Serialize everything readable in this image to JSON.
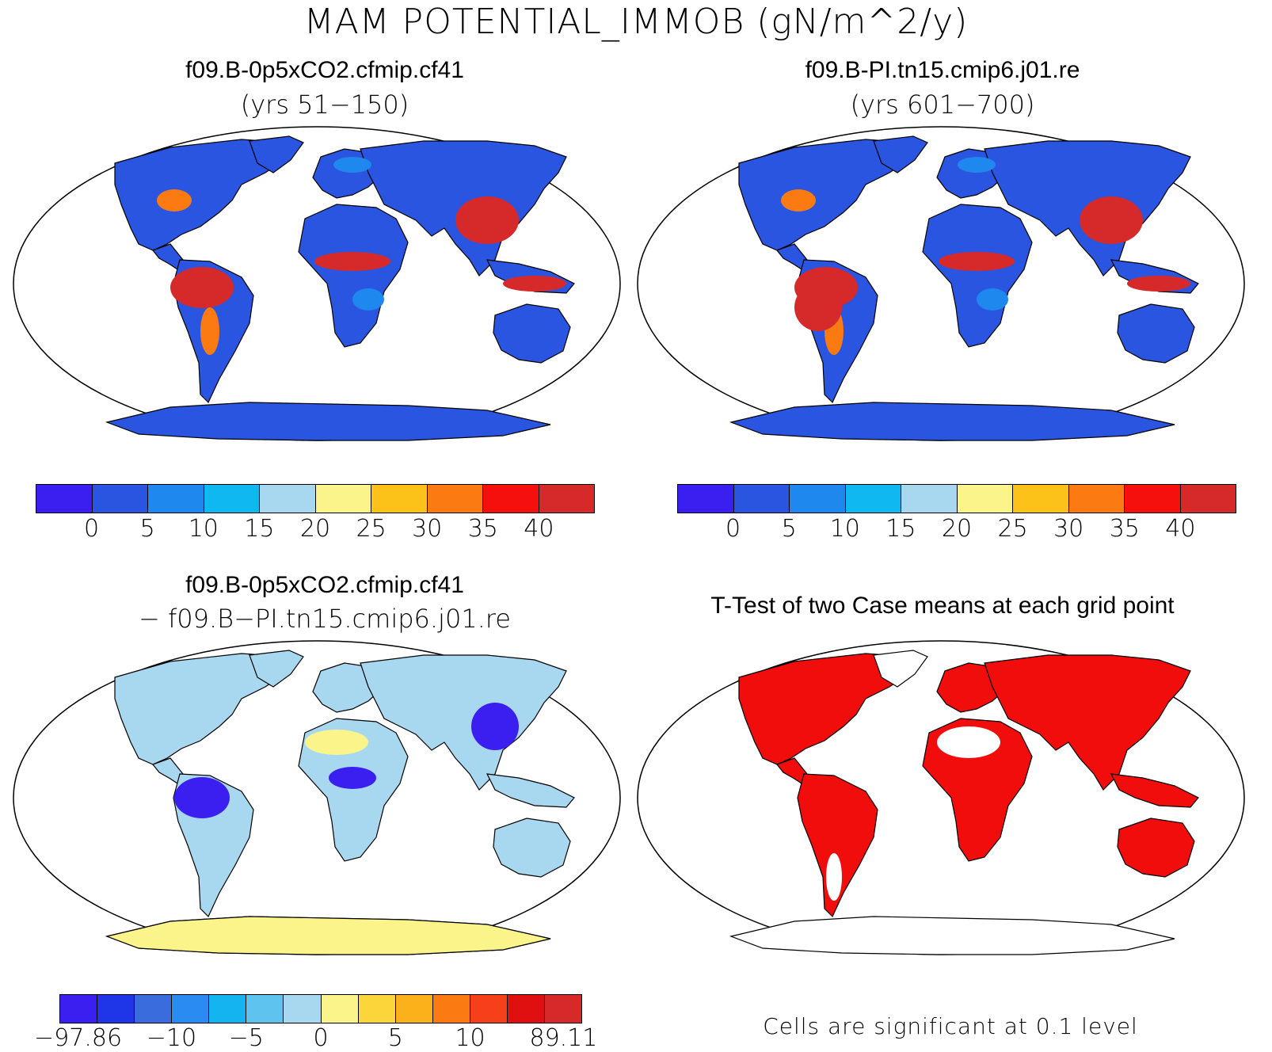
{
  "figure_title": "MAM POTENTIAL_IMMOB (gN/m^2/y)",
  "panels": [
    {
      "title": "f09.B-0p5xCO2.cfmip.cf41",
      "subtitle": "(yrs 51−150)",
      "colorbar": {
        "colors": [
          "#3b1ff0",
          "#2a55e0",
          "#1e88ee",
          "#10b8f2",
          "#a8d8f0",
          "#fbf48a",
          "#fcc21a",
          "#fb7b12",
          "#f5100e",
          "#d62a2a"
        ],
        "ticks": [
          "0",
          "5",
          "10",
          "15",
          "20",
          "25",
          "30",
          "35",
          "40"
        ]
      }
    },
    {
      "title": "f09.B-PI.tn15.cmip6.j01.re",
      "subtitle": "(yrs 601−700)",
      "colorbar": {
        "colors": [
          "#3b1ff0",
          "#2a55e0",
          "#1e88ee",
          "#10b8f2",
          "#a8d8f0",
          "#fbf48a",
          "#fcc21a",
          "#fb7b12",
          "#f5100e",
          "#d62a2a"
        ],
        "ticks": [
          "0",
          "5",
          "10",
          "15",
          "20",
          "25",
          "30",
          "35",
          "40"
        ]
      }
    },
    {
      "title": "f09.B-0p5xCO2.cfmip.cf41",
      "subtitle": "− f09.B−PI.tn15.cmip6.j01.re",
      "colorbar": {
        "colors": [
          "#3b1ff0",
          "#1f35e8",
          "#3a6cdd",
          "#2a8cf0",
          "#14b4f0",
          "#5ec3ee",
          "#a8d8f0",
          "#fbf48a",
          "#fad63a",
          "#fbb21a",
          "#fb7b12",
          "#f5401a",
          "#e01010",
          "#d62a2a"
        ],
        "ticks": [
          "−97.86",
          "−10",
          "−5",
          "0",
          "5",
          "10",
          "89.11"
        ]
      }
    },
    {
      "title": "T-Test of two Case means at each grid point",
      "note": "Cells are significant at 0.1 level"
    }
  ],
  "colors": {
    "ocean": "#ffffff",
    "land_blue": "#2a55e0",
    "land_mid": "#1e88ee",
    "land_red": "#d62a2a",
    "land_orange": "#fb7b12",
    "diff_light": "#a8d8f0",
    "diff_yellow": "#fbf48a",
    "diff_blue": "#3b1ff0",
    "signif": "#f20d0d"
  }
}
